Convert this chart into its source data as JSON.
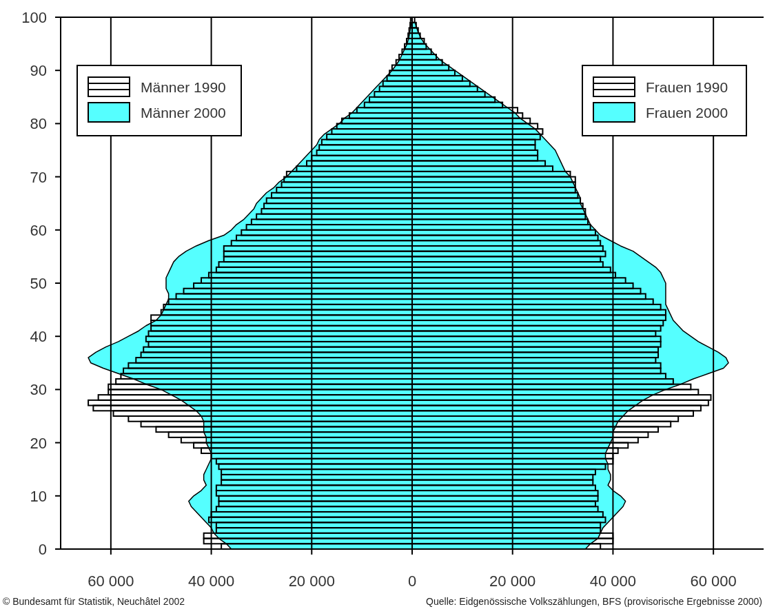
{
  "chart_data": {
    "type": "bar",
    "orientation": "horizontal",
    "x": [
      0,
      1,
      2,
      3,
      4,
      5,
      6,
      7,
      8,
      9,
      10,
      11,
      12,
      13,
      14,
      15,
      16,
      17,
      18,
      19,
      20,
      21,
      22,
      23,
      24,
      25,
      26,
      27,
      28,
      29,
      30,
      31,
      32,
      33,
      34,
      35,
      36,
      37,
      38,
      39,
      40,
      41,
      42,
      43,
      44,
      45,
      46,
      47,
      48,
      49,
      50,
      51,
      52,
      53,
      54,
      55,
      56,
      57,
      58,
      59,
      60,
      61,
      62,
      63,
      64,
      65,
      66,
      67,
      68,
      69,
      70,
      71,
      72,
      73,
      74,
      75,
      76,
      77,
      78,
      79,
      80,
      81,
      82,
      83,
      84,
      85,
      86,
      87,
      88,
      89,
      90,
      91,
      92,
      93,
      94,
      95,
      96,
      97,
      98,
      99
    ],
    "series": [
      {
        "name": "Männer 1990",
        "color": "#000000",
        "values": [
          -38000,
          -41500,
          -41500,
          -39000,
          -39000,
          -40500,
          -40000,
          -39000,
          -38500,
          -38500,
          -39000,
          -39000,
          -38000,
          -38000,
          -38000,
          -38500,
          -39000,
          -40000,
          -42000,
          -43500,
          -46000,
          -48500,
          -51000,
          -54000,
          -56500,
          -59500,
          -63500,
          -64500,
          -62500,
          -60500,
          -60500,
          -59000,
          -58000,
          -57500,
          -56500,
          -55000,
          -54000,
          -53500,
          -52500,
          -53000,
          -52500,
          -52000,
          -52000,
          -52000,
          -50000,
          -49500,
          -48500,
          -47000,
          -45500,
          -43500,
          -42000,
          -40500,
          -39000,
          -38500,
          -37500,
          -37500,
          -37500,
          -36000,
          -35000,
          -34000,
          -33000,
          -32000,
          -31000,
          -30000,
          -29500,
          -29000,
          -28000,
          -27000,
          -26000,
          -25500,
          -25000,
          -23000,
          -21000,
          -20000,
          -19000,
          -18500,
          -18000,
          -17000,
          -16000,
          -15000,
          -14000,
          -12500,
          -11000,
          -9500,
          -8500,
          -7500,
          -6500,
          -5800,
          -5000,
          -4500,
          -4000,
          -3200,
          -2600,
          -2000,
          -1500,
          -1100,
          -800,
          -600,
          -400,
          -300
        ]
      },
      {
        "name": "Männer 2000",
        "type": "area",
        "color": "#55ffff",
        "values": [
          -36000,
          -37000,
          -38500,
          -39500,
          -40000,
          -41000,
          -42000,
          -43000,
          -44000,
          -44500,
          -43500,
          -42000,
          -41000,
          -41500,
          -41500,
          -41000,
          -40500,
          -40000,
          -40000,
          -40500,
          -41000,
          -41000,
          -41500,
          -41500,
          -41500,
          -42000,
          -43000,
          -44500,
          -46000,
          -48000,
          -50000,
          -53000,
          -55500,
          -58500,
          -61500,
          -64000,
          -64500,
          -63000,
          -61000,
          -58500,
          -56500,
          -54500,
          -53000,
          -51000,
          -50000,
          -49500,
          -49000,
          -48500,
          -48500,
          -49000,
          -49000,
          -49000,
          -48500,
          -48000,
          -47500,
          -46500,
          -45000,
          -43000,
          -40500,
          -37500,
          -36000,
          -35000,
          -33500,
          -32500,
          -31500,
          -31000,
          -30000,
          -29000,
          -27500,
          -26500,
          -25000,
          -24000,
          -23000,
          -22000,
          -21000,
          -20000,
          -19000,
          -18500,
          -17500,
          -16000,
          -14500,
          -13500,
          -12000,
          -11000,
          -10000,
          -9000,
          -8000,
          -7000,
          -6000,
          -5000,
          -4000,
          -3200,
          -2500,
          -2000,
          -1500,
          -1000,
          -700,
          -500,
          -300,
          -200
        ]
      },
      {
        "name": "Frauen 1990",
        "color": "#000000",
        "values": [
          37500,
          40000,
          40000,
          37500,
          37500,
          38500,
          38000,
          37000,
          36500,
          37000,
          37000,
          36500,
          36000,
          36000,
          36500,
          38500,
          40000,
          40000,
          41000,
          43000,
          45000,
          47000,
          49000,
          51500,
          53000,
          56000,
          57500,
          59000,
          59500,
          57000,
          55500,
          52000,
          50500,
          49500,
          49500,
          48500,
          49000,
          49000,
          49500,
          49500,
          48500,
          49500,
          50000,
          50500,
          50500,
          49500,
          48000,
          46500,
          45500,
          44000,
          42500,
          40500,
          39500,
          38000,
          37500,
          38500,
          38000,
          37500,
          37000,
          36500,
          35500,
          35000,
          34500,
          34500,
          34000,
          33500,
          33000,
          32500,
          32500,
          32500,
          31500,
          28000,
          26500,
          25000,
          25000,
          24500,
          24500,
          25500,
          26000,
          25000,
          23500,
          22000,
          21000,
          18000,
          16500,
          14500,
          13000,
          11500,
          10000,
          8500,
          7300,
          6000,
          4800,
          3800,
          2800,
          2400,
          1600,
          1200,
          800,
          500
        ]
      },
      {
        "name": "Frauen 2000",
        "type": "area",
        "color": "#55ffff",
        "values": [
          34500,
          35500,
          37000,
          37500,
          38000,
          39000,
          40000,
          41000,
          42000,
          42500,
          41500,
          40000,
          39000,
          39500,
          39500,
          39000,
          39000,
          38500,
          38500,
          39000,
          39500,
          40000,
          40000,
          40500,
          41000,
          42000,
          43000,
          44500,
          46000,
          48000,
          50500,
          53500,
          56000,
          59000,
          62000,
          63000,
          62500,
          61000,
          59000,
          57000,
          55500,
          54000,
          53000,
          52000,
          51500,
          51000,
          50500,
          50500,
          50500,
          50500,
          50500,
          50000,
          49500,
          48500,
          47000,
          45500,
          44000,
          41500,
          39500,
          37500,
          36500,
          35500,
          35000,
          34500,
          34000,
          33500,
          33500,
          33000,
          32500,
          32000,
          31500,
          30500,
          30000,
          29500,
          29000,
          28500,
          27500,
          26500,
          25500,
          24500,
          23000,
          21500,
          20500,
          19000,
          17500,
          16000,
          14500,
          13000,
          11500,
          10000,
          8500,
          7000,
          5500,
          4500,
          3500,
          2500,
          1800,
          1300,
          900,
          600
        ]
      }
    ],
    "xlim": [
      -70000,
      70000
    ],
    "xticks": [
      {
        "value": -60000,
        "label": "60 000"
      },
      {
        "value": -40000,
        "label": "40 000"
      },
      {
        "value": -20000,
        "label": "20 000"
      },
      0,
      {
        "value": 20000,
        "label": "20 000"
      },
      {
        "value": 40000,
        "label": "40 000"
      },
      {
        "value": 60000,
        "label": "60 000"
      }
    ],
    "ylim": [
      0,
      100
    ],
    "yticks": [
      0,
      10,
      20,
      30,
      40,
      50,
      60,
      70,
      80,
      90,
      100
    ],
    "grid": "x",
    "legend": "top",
    "annotations": [
      "© Bundesamt für Statistik, Neuchâtel 2002",
      "Quelle: Eidgenössische Volkszählungen, BFS (provisorische Ergebnisse 2000)"
    ]
  }
}
